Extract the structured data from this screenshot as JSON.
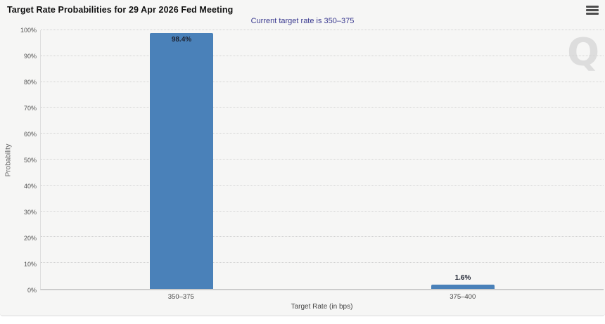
{
  "header": {
    "title": "Target Rate Probabilities for 29 Apr 2026 Fed Meeting",
    "subtitle": "Current target rate is 350–375",
    "menu_icon": "hamburger-icon"
  },
  "watermark": {
    "letter": "Q"
  },
  "colors": {
    "card_background": "#f6f6f5",
    "bar_fill": "#4a81b9",
    "subtitle_text": "#39398f",
    "axis_line": "#cccccc",
    "gridline": "#d3d3d3",
    "tick_text": "#555555",
    "watermark_text": "#dddddd"
  },
  "chart_data": {
    "type": "bar",
    "title": "Target Rate Probabilities for 29 Apr 2026 Fed Meeting",
    "subtitle": "Current target rate is 350–375",
    "categories": [
      "350–375",
      "375–400"
    ],
    "values": [
      98.4,
      1.6
    ],
    "bar_labels": [
      "98.4%",
      "1.6%"
    ],
    "xlabel": "Target Rate (in bps)",
    "ylabel": "Probability",
    "ylim": [
      0,
      100
    ],
    "yticks": [
      {
        "value": 0,
        "label": "0%"
      },
      {
        "value": 10,
        "label": "10%"
      },
      {
        "value": 20,
        "label": "20%"
      },
      {
        "value": 30,
        "label": "30%"
      },
      {
        "value": 40,
        "label": "40%"
      },
      {
        "value": 50,
        "label": "50%"
      },
      {
        "value": 60,
        "label": "60%"
      },
      {
        "value": 70,
        "label": "70%"
      },
      {
        "value": 80,
        "label": "80%"
      },
      {
        "value": 90,
        "label": "90%"
      },
      {
        "value": 100,
        "label": "100%"
      }
    ],
    "grid": "horizontal-dotted",
    "legend": "none",
    "bar_color": "#4a81b9"
  }
}
